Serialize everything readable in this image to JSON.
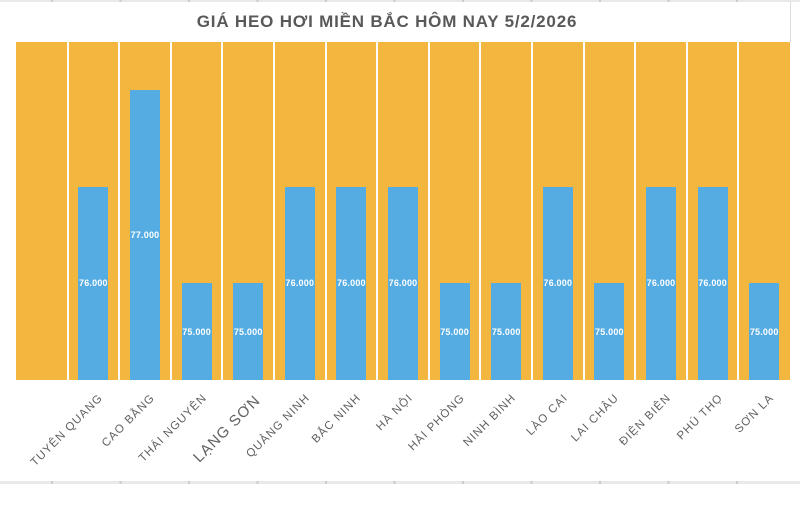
{
  "header": {
    "title": "GIÁ HEO HƠI MIỀN BẮC HÔM NAY 5/2/2026"
  },
  "chart_data": {
    "type": "bar",
    "title": "GIÁ HEO HƠI MIỀN BẮC HÔM NAY 5/2/2026",
    "categories": [
      "TUYÊN QUANG",
      "CAO BẰNG",
      "THÁI NGUYÊN",
      "LẠNG SƠN",
      "QUẢNG NINH",
      "BẮC NINH",
      "HÀ NỘI",
      "HẢI PHÒNG",
      "NINH BÌNH",
      "LÀO CAI",
      "LAI CHÂU",
      "ĐIỆN BIÊN",
      "PHÚ THỌ",
      "SƠN LA"
    ],
    "values": [
      76000,
      77000,
      75000,
      75000,
      76000,
      76000,
      76000,
      75000,
      75000,
      76000,
      75000,
      76000,
      76000,
      75000
    ],
    "value_labels": [
      "76.000",
      "77.000",
      "75.000",
      "75.000",
      "76.000",
      "76.000",
      "76.000",
      "75.000",
      "75.000",
      "76.000",
      "75.000",
      "76.000",
      "76.000",
      "75.000"
    ],
    "xlabel": "",
    "ylabel": "",
    "ylim": [
      74000,
      77500
    ],
    "legend": "none",
    "grid": "vertical-category-separators",
    "emphasized_category_index": 3,
    "layout": {
      "leading_empty_columns": 1,
      "value_label_position": "inside-center",
      "category_label_rotation_deg": 45
    },
    "colors": {
      "plot_background": "#F3B73F",
      "bar": "#55ACE2",
      "gridline": "#FCFCFC",
      "title": "#595959",
      "category_label": "#606060",
      "value_label": "#FFFFFF"
    }
  }
}
